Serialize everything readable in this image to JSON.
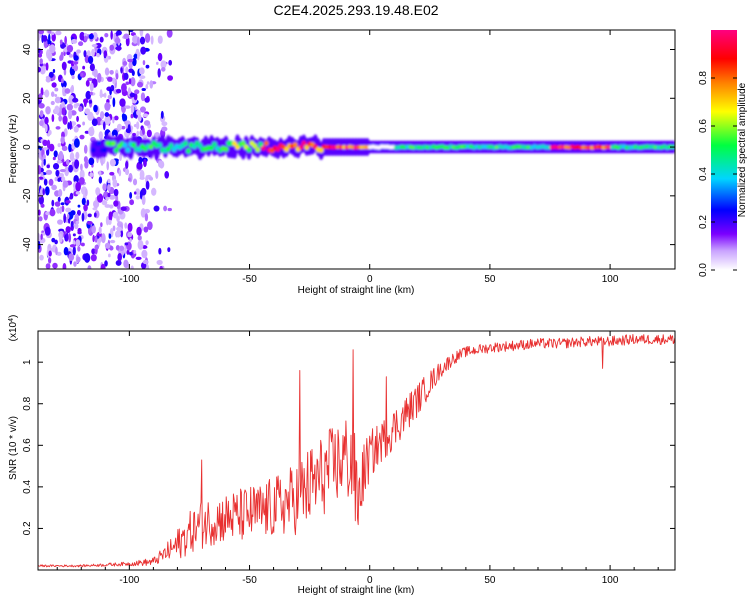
{
  "title": "C2E4.2025.293.19.48.E02",
  "chart_data": [
    {
      "type": "heatmap",
      "xlabel": "Height of straight line (km)",
      "ylabel": "Frequency (Hz)",
      "xlim": [
        -138,
        127
      ],
      "ylim": [
        -50,
        48
      ],
      "xticks": [
        -100,
        -50,
        0,
        50,
        100
      ],
      "yticks": [
        -40,
        -20,
        0,
        20,
        40
      ],
      "colorbar": {
        "label": "Normalized spectral amplitude",
        "range": [
          0,
          1
        ],
        "ticks": [
          0.0,
          0.2,
          0.4,
          0.6,
          0.8
        ],
        "colors": [
          "#ffffff",
          "#7b00ff",
          "#0000ff",
          "#00d5ff",
          "#00ff40",
          "#ffff00",
          "#ff8000",
          "#ff0000",
          "#ff0080"
        ]
      },
      "band": {
        "center_frequency": 0,
        "segments": [
          {
            "x": [
              -138,
              -90
            ],
            "amplitude": 0.25,
            "description": "scattered noise"
          },
          {
            "x": [
              -110,
              -60
            ],
            "amplitude": 0.5
          },
          {
            "x": [
              -60,
              -20
            ],
            "amplitude": 0.6
          },
          {
            "x": [
              -45,
              0
            ],
            "amplitude": 0.9
          },
          {
            "x": [
              10,
              75
            ],
            "amplitude": 0.5
          },
          {
            "x": [
              75,
              100
            ],
            "amplitude": 0.95
          },
          {
            "x": [
              100,
              127
            ],
            "amplitude": 0.5
          }
        ]
      }
    },
    {
      "type": "line",
      "xlabel": "Height of straight line (km)",
      "ylabel": "SNR (10 * v/v)",
      "yscale_label": "(x10",
      "yscale_exponent": "4",
      "xlim": [
        -138,
        127
      ],
      "ylim": [
        0,
        1.15
      ],
      "xticks": [
        -100,
        -50,
        0,
        50,
        100
      ],
      "yticks": [
        0.2,
        0.4,
        0.6,
        0.8,
        1.0
      ],
      "series": [
        {
          "name": "SNR",
          "color": "#e83030",
          "x": [
            -138,
            -120,
            -100,
            -90,
            -85,
            -80,
            -75,
            -70,
            -65,
            -60,
            -55,
            -50,
            -45,
            -40,
            -35,
            -30,
            -25,
            -20,
            -15,
            -10,
            -7,
            -5,
            -3,
            0,
            5,
            10,
            15,
            20,
            25,
            30,
            35,
            40,
            50,
            60,
            70,
            80,
            90,
            97,
            100,
            110,
            120,
            127
          ],
          "y": [
            0.02,
            0.02,
            0.03,
            0.04,
            0.08,
            0.12,
            0.18,
            0.22,
            0.24,
            0.25,
            0.26,
            0.27,
            0.28,
            0.3,
            0.32,
            0.35,
            0.4,
            0.45,
            0.5,
            0.55,
            0.5,
            0.3,
            0.45,
            0.55,
            0.62,
            0.68,
            0.75,
            0.82,
            0.9,
            0.97,
            1.02,
            1.05,
            1.07,
            1.08,
            1.09,
            1.09,
            1.1,
            1.1,
            1.1,
            1.11,
            1.11,
            1.11
          ],
          "noise": [
            0.005,
            0.005,
            0.01,
            0.02,
            0.04,
            0.08,
            0.1,
            0.12,
            0.12,
            0.12,
            0.13,
            0.14,
            0.14,
            0.15,
            0.16,
            0.18,
            0.2,
            0.2,
            0.2,
            0.2,
            0.25,
            0.2,
            0.15,
            0.12,
            0.1,
            0.1,
            0.09,
            0.08,
            0.06,
            0.04,
            0.03,
            0.025,
            0.025,
            0.025,
            0.025,
            0.025,
            0.025,
            0.025,
            0.025,
            0.025,
            0.025,
            0.025
          ],
          "spikes": [
            {
              "x": -70,
              "y": 0.53
            },
            {
              "x": -29,
              "y": 0.96
            },
            {
              "x": -7,
              "y": 1.06
            },
            {
              "x": 7,
              "y": 0.93
            },
            {
              "x": 97,
              "y": 0.97
            }
          ]
        }
      ]
    }
  ]
}
